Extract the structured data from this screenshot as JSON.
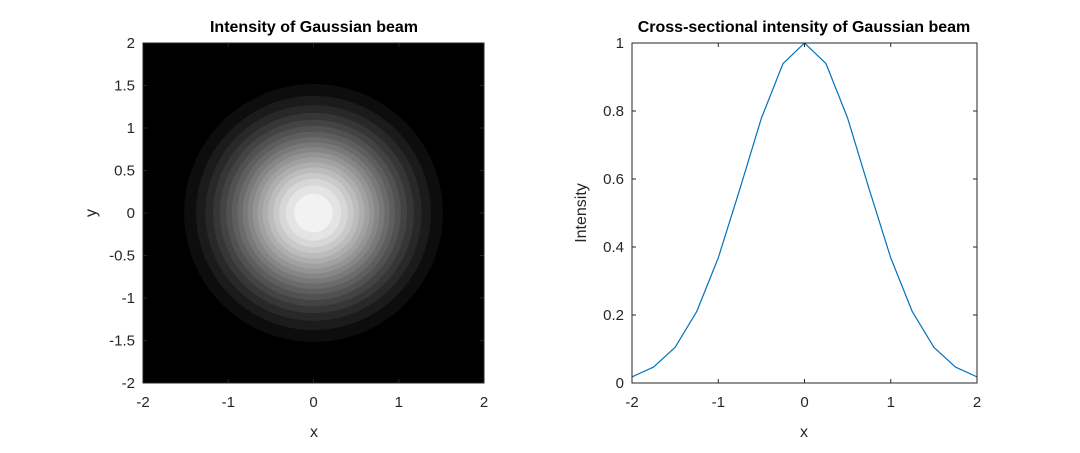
{
  "chart_data": [
    {
      "type": "heatmap",
      "title": "Intensity of Gaussian beam",
      "xlabel": "x",
      "ylabel": "y",
      "xlim": [
        -2,
        2
      ],
      "ylim": [
        -2,
        2
      ],
      "colormap": "gray",
      "function": "exp(-(x^2 + y^2))",
      "contour_levels": 20,
      "xticks": [
        -2,
        -1,
        0,
        1,
        2
      ],
      "yticks": [
        -2,
        -1.5,
        -1,
        -0.5,
        0,
        0.5,
        1,
        1.5,
        2
      ],
      "xtick_labels": [
        "-2",
        "-1",
        "0",
        "1",
        "2"
      ],
      "ytick_labels": [
        "-2",
        "-1.5",
        "-1",
        "-0.5",
        "0",
        "0.5",
        "1",
        "1.5",
        "2"
      ],
      "grid": false
    },
    {
      "type": "line",
      "title": "Cross-sectional intensity of Gaussian beam",
      "xlabel": "x",
      "ylabel": "Intensity",
      "xlim": [
        -2,
        2
      ],
      "ylim": [
        0,
        1
      ],
      "xticks": [
        -2,
        -1,
        0,
        1,
        2
      ],
      "yticks": [
        0,
        0.2,
        0.4,
        0.6,
        0.8,
        1
      ],
      "xtick_labels": [
        "-2",
        "-1",
        "0",
        "1",
        "2"
      ],
      "ytick_labels": [
        "0",
        "0.2",
        "0.4",
        "0.6",
        "0.8",
        "1"
      ],
      "grid": false,
      "series": [
        {
          "color": "#0072BD",
          "x": [
            -2,
            -1.75,
            -1.5,
            -1.25,
            -1,
            -0.75,
            -0.5,
            -0.25,
            0,
            0.25,
            0.5,
            0.75,
            1,
            1.25,
            1.5,
            1.75,
            2
          ],
          "y": [
            0.018,
            0.047,
            0.105,
            0.21,
            0.368,
            0.57,
            0.779,
            0.939,
            1.0,
            0.939,
            0.779,
            0.57,
            0.368,
            0.21,
            0.105,
            0.047,
            0.018
          ]
        }
      ]
    }
  ]
}
